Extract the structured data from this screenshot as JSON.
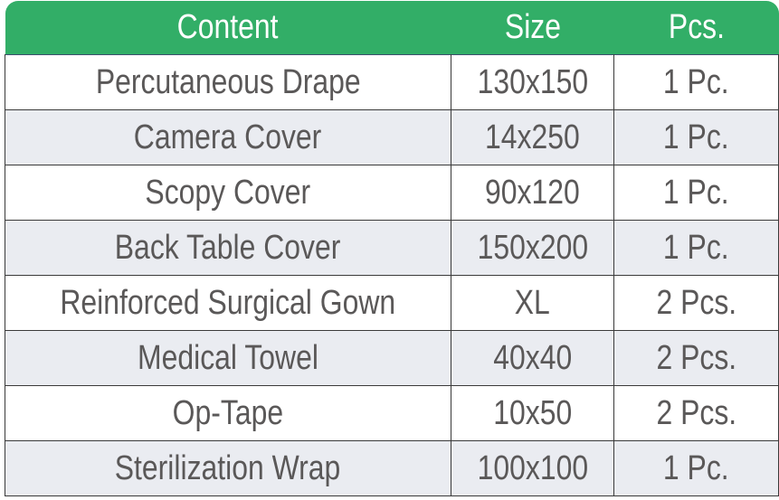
{
  "colors": {
    "header_bg": "#32ae67",
    "header_text": "#ffffff",
    "row_alt_bg": "#eaecf1",
    "text": "#5a5858"
  },
  "headers": [
    "Content",
    "Size",
    "Pcs."
  ],
  "rows": [
    [
      "Percutaneous Drape",
      "130x150",
      "1 Pc."
    ],
    [
      "Camera Cover",
      "14x250",
      "1 Pc."
    ],
    [
      "Scopy Cover",
      "90x120",
      "1 Pc."
    ],
    [
      "Back Table Cover",
      "150x200",
      "1 Pc."
    ],
    [
      "Reinforced Surgical Gown",
      "XL",
      "2 Pcs."
    ],
    [
      "Medical Towel",
      "40x40",
      "2 Pcs."
    ],
    [
      "Op-Tape",
      "10x50",
      "2 Pcs."
    ],
    [
      "Sterilization Wrap",
      "100x100",
      "1 Pc."
    ]
  ]
}
